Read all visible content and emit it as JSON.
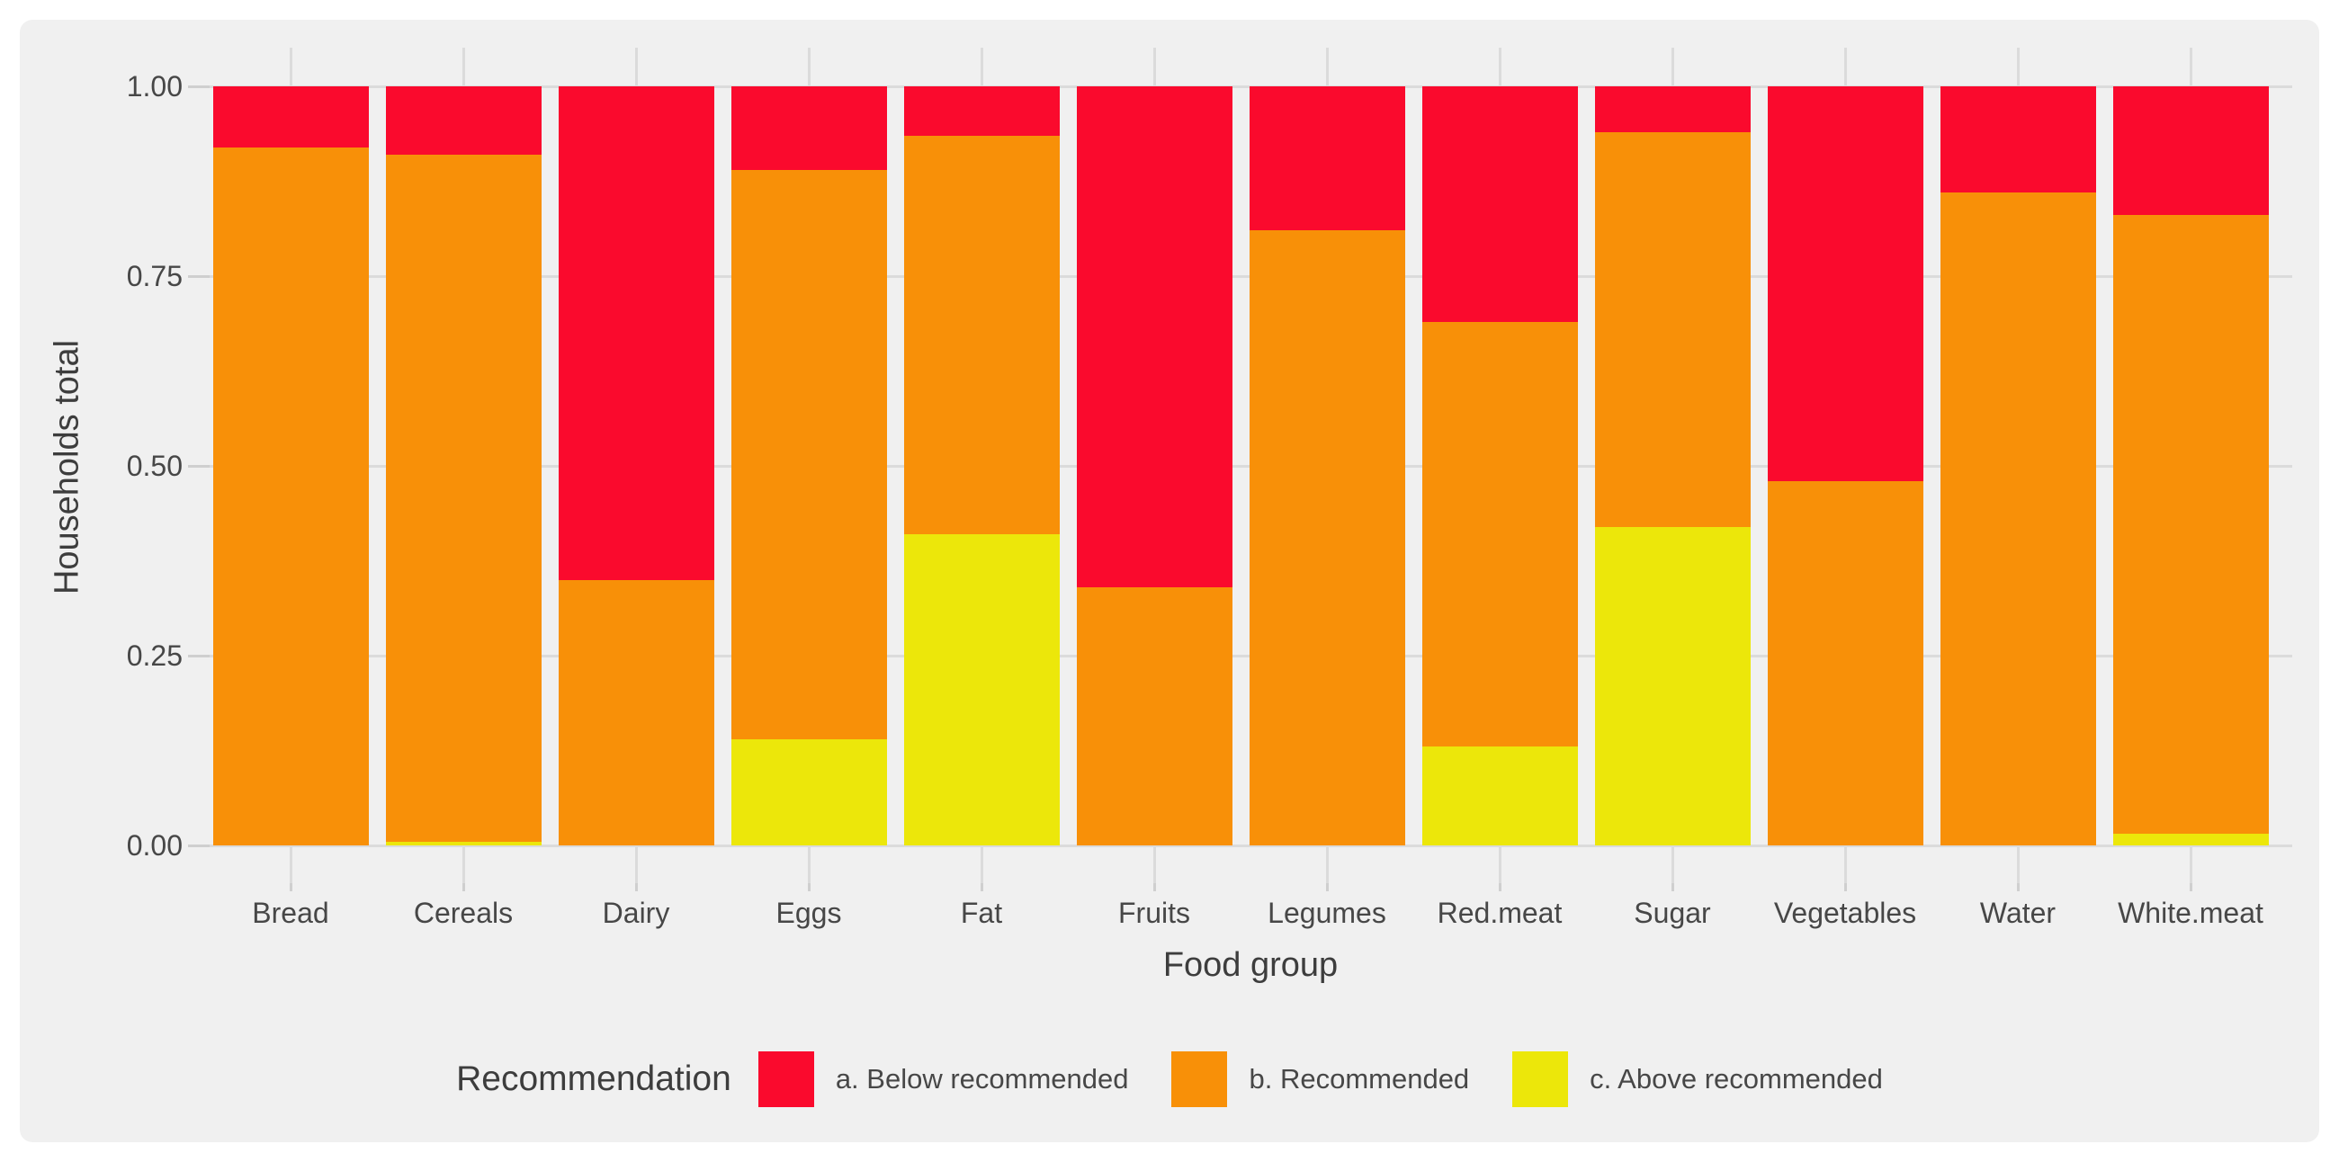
{
  "colors": {
    "page_background": "#FFFFFF",
    "figure_background": "#F0F0F0",
    "gridline": "#DBDBDB",
    "tick_mark": "#CFCFCF",
    "axis_text": "#474747",
    "title_text": "#3D3D3D",
    "below_recommended": "#FA0A2D",
    "recommended": "#F89008",
    "above_recommended": "#ECE70A"
  },
  "chart_data": {
    "type": "bar",
    "stacked": true,
    "xlabel": "Food group",
    "ylabel": "Households total",
    "ylim": [
      0,
      1
    ],
    "ytick_labels": [
      "0.00",
      "0.25",
      "0.50",
      "0.75",
      "1.00"
    ],
    "grid": "on",
    "categories": [
      "Bread",
      "Cereals",
      "Dairy",
      "Eggs",
      "Fat",
      "Fruits",
      "Legumes",
      "Red.meat",
      "Sugar",
      "Vegetables",
      "Water",
      "White.meat"
    ],
    "series": [
      {
        "name": "a. Below recommended",
        "color": "#FA0A2D",
        "values": [
          0.08,
          0.09,
          0.65,
          0.11,
          0.065,
          0.66,
          0.19,
          0.31,
          0.06,
          0.52,
          0.14,
          0.17
        ]
      },
      {
        "name": "b. Recommended",
        "color": "#F89008",
        "values": [
          0.92,
          0.905,
          0.35,
          0.75,
          0.525,
          0.34,
          0.81,
          0.56,
          0.52,
          0.48,
          0.86,
          0.815
        ]
      },
      {
        "name": "c. Above recommended",
        "color": "#ECE70A",
        "values": [
          0.0,
          0.005,
          0.0,
          0.14,
          0.41,
          0.0,
          0.0,
          0.13,
          0.42,
          0.0,
          0.0,
          0.015
        ]
      }
    ],
    "stack_order_bottom_to_top": [
      "c. Above recommended",
      "b. Recommended",
      "a. Below recommended"
    ],
    "legend": {
      "title": "Recommendation",
      "position": "bottom"
    }
  }
}
